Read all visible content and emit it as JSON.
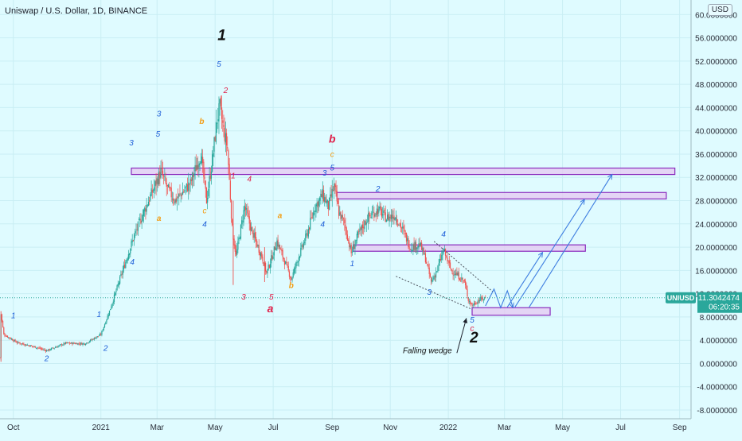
{
  "header": {
    "title": "Uniswap / U.S. Dollar, 1D, BINANCE",
    "currency": "USD"
  },
  "price_tag": {
    "symbol": "UNIUSD",
    "price": "11.3042474",
    "countdown": "06:20:35",
    "value": 11.3042474
  },
  "colors": {
    "bg": "#dffbff",
    "up": "#26a69a",
    "down": "#ef5350",
    "zone_fill": "#e6c8f2",
    "zone_stroke": "#8a2bbd",
    "blue_label": "#1e5fd8",
    "red_label": "#e0204a",
    "orange_label": "#f39c12",
    "projection": "#3d7de0",
    "tag": "#2aa79b"
  },
  "annotations": {
    "falling_wedge": "Falling wedge",
    "labels": [
      {
        "text": "1",
        "color": "blue",
        "date": "2020-10-01",
        "price": 7.8
      },
      {
        "text": "2",
        "color": "blue",
        "date": "2020-11-05",
        "price": 0.4
      },
      {
        "text": "1",
        "color": "blue",
        "date": "2020-12-30",
        "price": 8.0
      },
      {
        "text": "2",
        "color": "blue",
        "date": "2021-01-06",
        "price": 2.2
      },
      {
        "text": "3",
        "color": "blue",
        "date": "2021-02-02",
        "price": 37.5
      },
      {
        "text": "4",
        "color": "blue",
        "date": "2021-02-03",
        "price": 17.0
      },
      {
        "text": "5",
        "color": "blue",
        "date": "2021-03-02",
        "price": 39.0
      },
      {
        "text": "3",
        "color": "blue",
        "date": "2021-03-03",
        "price": 42.5
      },
      {
        "text": "a",
        "color": "orange",
        "date": "2021-03-03",
        "price": 24.5
      },
      {
        "text": "b",
        "color": "orange",
        "date": "2021-04-17",
        "price": 41.2
      },
      {
        "text": "c",
        "color": "orange",
        "date": "2021-04-20",
        "price": 25.8
      },
      {
        "text": "4",
        "color": "blue",
        "date": "2021-04-20",
        "price": 23.5
      },
      {
        "text": "5",
        "color": "blue",
        "date": "2021-05-05",
        "price": 51.0
      },
      {
        "text": "1",
        "color": "black",
        "date": "2021-05-08",
        "price": 55.6
      },
      {
        "text": "2",
        "color": "red",
        "date": "2021-05-12",
        "price": 46.5
      },
      {
        "text": "1",
        "color": "red",
        "date": "2021-05-20",
        "price": 31.8
      },
      {
        "text": "4",
        "color": "red",
        "date": "2021-06-06",
        "price": 31.3
      },
      {
        "text": "3",
        "color": "red",
        "date": "2021-05-31",
        "price": 11.0
      },
      {
        "text": "5",
        "color": "red",
        "date": "2021-06-29",
        "price": 11.0
      },
      {
        "text": "a",
        "color": "red",
        "date": "2021-06-28",
        "price": 8.8
      },
      {
        "text": "a",
        "color": "orange",
        "date": "2021-07-08",
        "price": 25.0
      },
      {
        "text": "b",
        "color": "orange",
        "date": "2021-07-20",
        "price": 13.0
      },
      {
        "text": "b",
        "color": "red",
        "date": "2021-09-01",
        "price": 38.0
      },
      {
        "text": "c",
        "color": "orange",
        "date": "2021-09-01",
        "price": 35.5
      },
      {
        "text": "5",
        "color": "blue",
        "date": "2021-09-01",
        "price": 33.2
      },
      {
        "text": "3",
        "color": "blue",
        "date": "2021-08-24",
        "price": 32.3
      },
      {
        "text": "4",
        "color": "blue",
        "date": "2021-08-22",
        "price": 23.5
      },
      {
        "text": "1",
        "color": "blue",
        "date": "2021-09-22",
        "price": 16.7
      },
      {
        "text": "2",
        "color": "blue",
        "date": "2021-10-19",
        "price": 29.6
      },
      {
        "text": "3",
        "color": "blue",
        "date": "2021-12-12",
        "price": 11.8
      },
      {
        "text": "4",
        "color": "blue",
        "date": "2021-12-27",
        "price": 21.8
      },
      {
        "text": "5",
        "color": "blue",
        "date": "2022-01-26",
        "price": 7.0
      },
      {
        "text": "c",
        "color": "red",
        "date": "2022-01-26",
        "price": 5.6
      },
      {
        "text": "2",
        "color": "black",
        "date": "2022-01-28",
        "price": 3.6
      }
    ]
  },
  "chart_data": {
    "type": "candlestick",
    "title": "Uniswap / U.S. Dollar, 1D, BINANCE",
    "ylim": [
      -9.5,
      62.5
    ],
    "xlim": [
      "2020-09-17",
      "2022-09-13"
    ],
    "y_ticks": [
      "60.0000000",
      "56.0000000",
      "52.0000000",
      "48.0000000",
      "44.0000000",
      "40.0000000",
      "36.0000000",
      "32.0000000",
      "28.0000000",
      "24.0000000",
      "20.0000000",
      "16.0000000",
      "12.0000000",
      "8.0000000",
      "4.0000000",
      "0.0000000",
      "-4.0000000",
      "-8.0000000"
    ],
    "y_tick_values": [
      60,
      56,
      52,
      48,
      44,
      40,
      36,
      32,
      28,
      24,
      20,
      16,
      12,
      8,
      4,
      0,
      -4,
      -8
    ],
    "x_ticks": [
      {
        "label": "Oct",
        "date": "2020-10-01"
      },
      {
        "label": "2021",
        "date": "2021-01-01"
      },
      {
        "label": "Mar",
        "date": "2021-03-01"
      },
      {
        "label": "May",
        "date": "2021-05-01"
      },
      {
        "label": "Jul",
        "date": "2021-07-01"
      },
      {
        "label": "Sep",
        "date": "2021-09-01"
      },
      {
        "label": "Nov",
        "date": "2021-11-01"
      },
      {
        "label": "2022",
        "date": "2022-01-01"
      },
      {
        "label": "Mar",
        "date": "2022-03-01"
      },
      {
        "label": "May",
        "date": "2022-05-01"
      },
      {
        "label": "Jul",
        "date": "2022-07-01"
      },
      {
        "label": "Sep",
        "date": "2022-09-01"
      }
    ],
    "close_path": [
      {
        "date": "2020-09-17",
        "price": 1.0
      },
      {
        "date": "2020-09-18",
        "price": 8.5
      },
      {
        "date": "2020-09-21",
        "price": 5.0
      },
      {
        "date": "2020-10-05",
        "price": 3.6
      },
      {
        "date": "2020-10-25",
        "price": 2.8
      },
      {
        "date": "2020-11-05",
        "price": 2.2
      },
      {
        "date": "2020-11-25",
        "price": 3.5
      },
      {
        "date": "2020-12-15",
        "price": 3.4
      },
      {
        "date": "2021-01-01",
        "price": 5.0
      },
      {
        "date": "2021-01-10",
        "price": 9.0
      },
      {
        "date": "2021-01-20",
        "price": 14.0
      },
      {
        "date": "2021-02-05",
        "price": 22.0
      },
      {
        "date": "2021-02-20",
        "price": 28.0
      },
      {
        "date": "2021-03-05",
        "price": 33.0
      },
      {
        "date": "2021-03-12",
        "price": 30.0
      },
      {
        "date": "2021-03-20",
        "price": 28.0
      },
      {
        "date": "2021-04-05",
        "price": 31.0
      },
      {
        "date": "2021-04-16",
        "price": 36.0
      },
      {
        "date": "2021-04-22",
        "price": 28.0
      },
      {
        "date": "2021-04-28",
        "price": 35.0
      },
      {
        "date": "2021-05-03",
        "price": 42.0
      },
      {
        "date": "2021-05-06",
        "price": 44.0
      },
      {
        "date": "2021-05-10",
        "price": 40.0
      },
      {
        "date": "2021-05-14",
        "price": 37.0
      },
      {
        "date": "2021-05-19",
        "price": 23.0
      },
      {
        "date": "2021-05-23",
        "price": 18.5
      },
      {
        "date": "2021-06-01",
        "price": 27.0
      },
      {
        "date": "2021-06-08",
        "price": 23.0
      },
      {
        "date": "2021-06-20",
        "price": 18.0
      },
      {
        "date": "2021-06-24",
        "price": 15.5
      },
      {
        "date": "2021-06-30",
        "price": 18.5
      },
      {
        "date": "2021-07-05",
        "price": 21.0
      },
      {
        "date": "2021-07-12",
        "price": 18.0
      },
      {
        "date": "2021-07-20",
        "price": 14.5
      },
      {
        "date": "2021-07-27",
        "price": 18.0
      },
      {
        "date": "2021-08-05",
        "price": 22.0
      },
      {
        "date": "2021-08-14",
        "price": 27.0
      },
      {
        "date": "2021-08-22",
        "price": 29.0
      },
      {
        "date": "2021-08-28",
        "price": 27.0
      },
      {
        "date": "2021-09-03",
        "price": 30.5
      },
      {
        "date": "2021-09-08",
        "price": 26.0
      },
      {
        "date": "2021-09-14",
        "price": 24.0
      },
      {
        "date": "2021-09-21",
        "price": 19.0
      },
      {
        "date": "2021-09-28",
        "price": 22.0
      },
      {
        "date": "2021-10-08",
        "price": 25.0
      },
      {
        "date": "2021-10-19",
        "price": 26.5
      },
      {
        "date": "2021-10-28",
        "price": 25.0
      },
      {
        "date": "2021-11-06",
        "price": 25.5
      },
      {
        "date": "2021-11-14",
        "price": 23.0
      },
      {
        "date": "2021-11-22",
        "price": 20.0
      },
      {
        "date": "2021-12-02",
        "price": 20.5
      },
      {
        "date": "2021-12-08",
        "price": 18.0
      },
      {
        "date": "2021-12-14",
        "price": 14.0
      },
      {
        "date": "2021-12-20",
        "price": 16.0
      },
      {
        "date": "2021-12-27",
        "price": 19.5
      },
      {
        "date": "2022-01-04",
        "price": 16.0
      },
      {
        "date": "2022-01-12",
        "price": 15.0
      },
      {
        "date": "2022-01-18",
        "price": 14.0
      },
      {
        "date": "2022-01-22",
        "price": 11.0
      },
      {
        "date": "2022-01-26",
        "price": 10.0
      },
      {
        "date": "2022-02-03",
        "price": 11.0
      },
      {
        "date": "2022-02-09",
        "price": 11.3
      }
    ],
    "zones": [
      {
        "from": "2021-02-02",
        "to": "2022-08-27",
        "low": 32.5,
        "high": 33.6
      },
      {
        "from": "2021-09-06",
        "to": "2022-08-18",
        "low": 28.3,
        "high": 29.4
      },
      {
        "from": "2021-09-23",
        "to": "2022-05-25",
        "low": 19.3,
        "high": 20.4
      },
      {
        "from": "2022-01-26",
        "to": "2022-04-18",
        "low": 8.3,
        "high": 9.6
      }
    ],
    "trendlines": [
      {
        "from": {
          "date": "2021-12-17",
          "price": 21.0
        },
        "to": {
          "date": "2022-02-17",
          "price": 12.3
        }
      },
      {
        "from": {
          "date": "2021-11-07",
          "price": 15.0
        },
        "to": {
          "date": "2022-01-26",
          "price": 9.3
        }
      }
    ],
    "projection": {
      "zigzag": [
        {
          "date": "2022-02-09",
          "price": 9.9
        },
        {
          "date": "2022-02-18",
          "price": 12.8
        },
        {
          "date": "2022-02-25",
          "price": 9.6
        },
        {
          "date": "2022-03-04",
          "price": 12.5
        },
        {
          "date": "2022-03-10",
          "price": 9.6
        }
      ],
      "arrows": [
        {
          "from": {
            "date": "2022-03-04",
            "price": 9.7
          },
          "to": {
            "date": "2022-04-10",
            "price": 19.1
          }
        },
        {
          "from": {
            "date": "2022-03-12",
            "price": 9.7
          },
          "to": {
            "date": "2022-05-24",
            "price": 28.2
          }
        },
        {
          "from": {
            "date": "2022-03-27",
            "price": 9.7
          },
          "to": {
            "date": "2022-06-22",
            "price": 32.5
          }
        }
      ],
      "wedge_arrow": {
        "from": {
          "date": "2022-01-10",
          "price": 1.8
        },
        "to": {
          "date": "2022-01-20",
          "price": 7.8
        }
      }
    }
  }
}
